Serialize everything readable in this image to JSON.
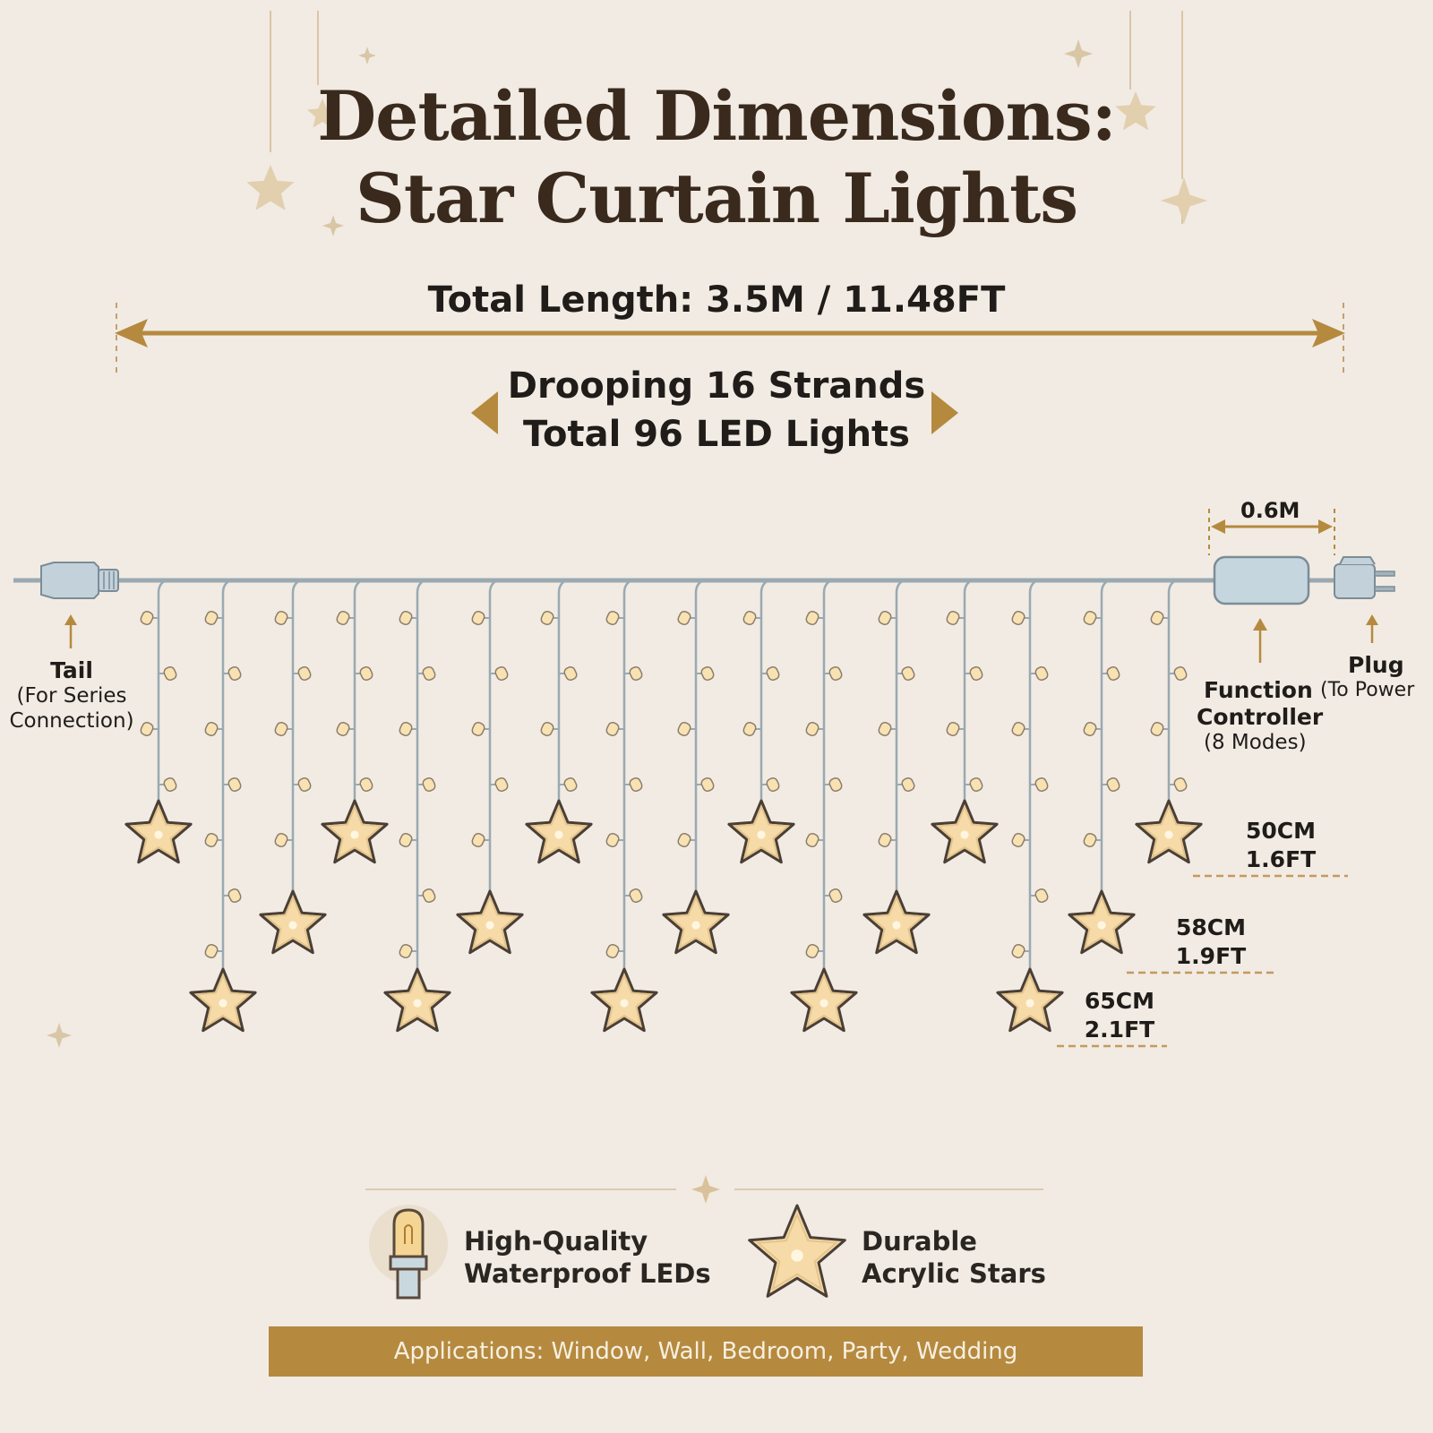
{
  "title": {
    "line1": "Detailed Dimensions:",
    "line2": "Star Curtain Lights"
  },
  "total_length": "Total Length: 3.5M / 11.48FT",
  "strands": {
    "line1": "Drooping 16 Strands",
    "line2": "Total 96 LED Lights"
  },
  "controller_cable_length": "0.6M",
  "tail": {
    "label": "Tail",
    "note_line1": "(For Series",
    "note_line2": "Connection)"
  },
  "controller": {
    "label_line1": "Function",
    "label_line2": "Controller",
    "note": "(8 Modes)"
  },
  "plug": {
    "label": "Plug",
    "note": "(To Power"
  },
  "strand_lengths": [
    {
      "cm": "50CM",
      "ft": "1.6FT"
    },
    {
      "cm": "58CM",
      "ft": "1.9FT"
    },
    {
      "cm": "65CM",
      "ft": "2.1FT"
    }
  ],
  "features": [
    {
      "icon": "led-bulb-icon",
      "line1": "High-Quality",
      "line2": "Waterproof LEDs"
    },
    {
      "icon": "acrylic-star-icon",
      "line1": "Durable",
      "line2": "Acrylic Stars"
    }
  ],
  "applications": "Applications: Window, Wall, Bedroom, Party, Wedding",
  "colors": {
    "background": "#f1ebe3",
    "gold": "#b58a3f",
    "star_fill": "#f6dba8",
    "star_stroke": "#4a3f36",
    "wire": "#a9b7bf",
    "title": "#3a2a1d"
  }
}
